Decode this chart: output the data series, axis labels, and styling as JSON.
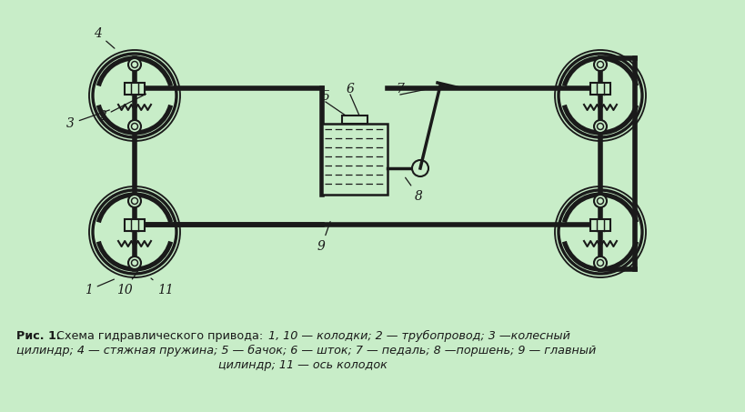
{
  "bg_color": "#c8edc8",
  "line_color": "#1a1a1a",
  "fig_w": 8.2,
  "fig_h": 4.53,
  "dpi": 100,
  "caption_bold": "Рис. 1.",
  "caption_normal": " Схема гидравлического привода:",
  "caption_space": "      ",
  "caption_rest1": "1, 10 — колодки; 2 — трубопровод; 3 —колесный",
  "caption_line2": "цилиндр; 4 — стяжная пружина; 5 — бачок; 6 — шток; 7 — педаль; 8 —поршень; 9 — главный",
  "caption_line3": "цилиндр; 11 — ось колодок"
}
